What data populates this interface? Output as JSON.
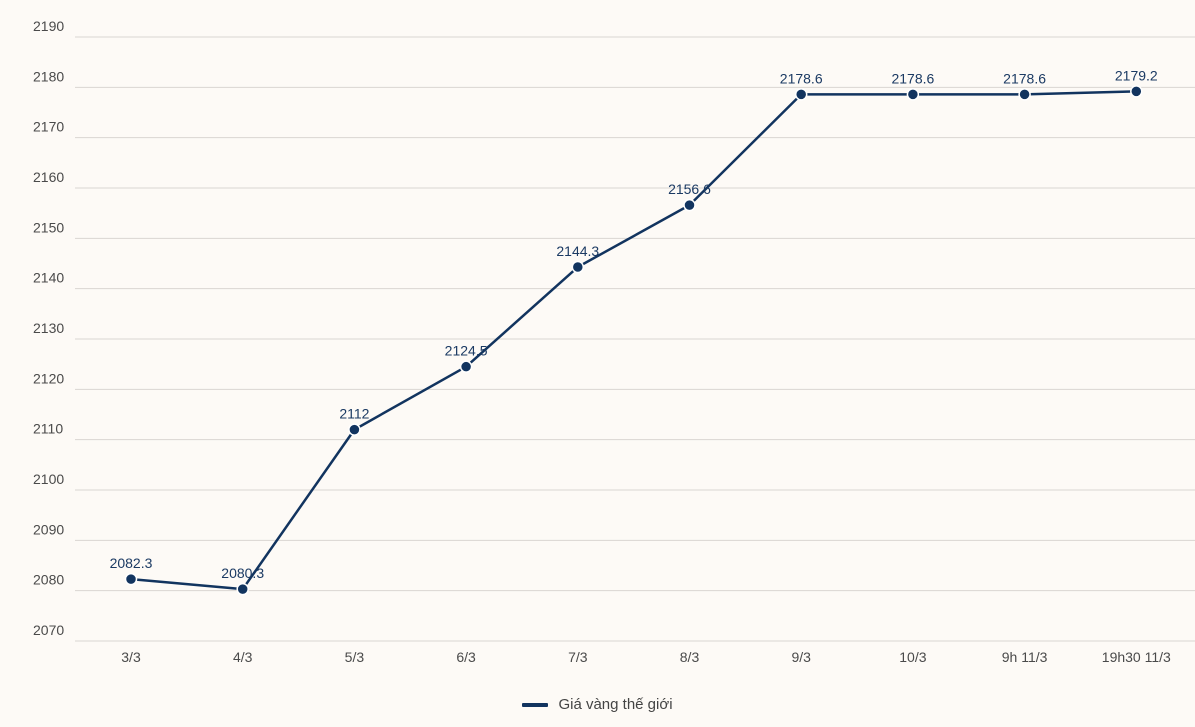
{
  "chart_data": {
    "type": "line",
    "categories": [
      "3/3",
      "4/3",
      "5/3",
      "6/3",
      "7/3",
      "8/3",
      "9/3",
      "10/3",
      "9h 11/3",
      "19h30 11/3"
    ],
    "series": [
      {
        "name": "Giá vàng thế giới",
        "values": [
          2082.3,
          2080.3,
          2112,
          2124.5,
          2144.3,
          2156.6,
          2178.6,
          2178.6,
          2178.6,
          2179.2
        ],
        "labels": [
          "2082.3",
          "2080.3",
          "2112",
          "2124.5",
          "2144.3",
          "2156.6",
          "2178.6",
          "2178.6",
          "2178.6",
          "2179.2"
        ],
        "color": "#12345f"
      }
    ],
    "yticks": [
      "2070",
      "2080",
      "2090",
      "2100",
      "2110",
      "2120",
      "2130",
      "2140",
      "2150",
      "2160",
      "2170",
      "2180",
      "2190"
    ],
    "ylim": [
      2070,
      2190
    ],
    "grid": true,
    "legend_position": "bottom-center",
    "background_color": "#fdfaf6",
    "gridline_color": "#d9d6d2"
  }
}
